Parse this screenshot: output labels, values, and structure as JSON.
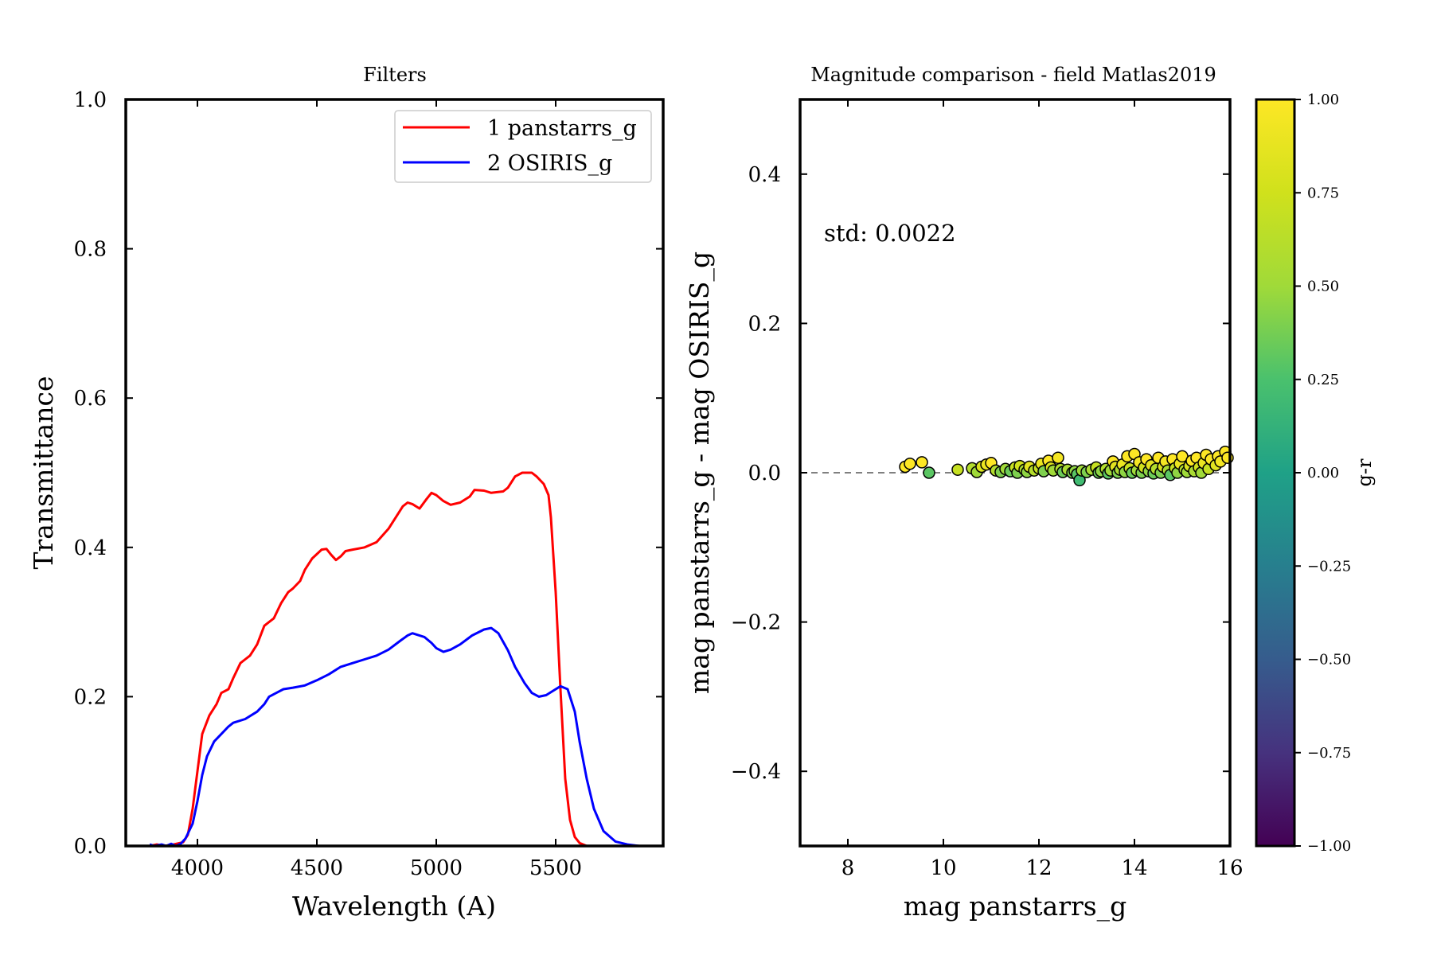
{
  "chart_data": [
    {
      "type": "line",
      "title": "Filters",
      "xlabel": "Wavelength (A)",
      "ylabel": "Transmittance",
      "xlim": [
        3700,
        5950
      ],
      "ylim": [
        0.0,
        1.0
      ],
      "xticks": [
        4000,
        4500,
        5000,
        5500
      ],
      "yticks": [
        0.0,
        0.2,
        0.4,
        0.6,
        0.8,
        1.0
      ],
      "xtick_labels": [
        "4000",
        "4500",
        "5000",
        "5500"
      ],
      "ytick_labels": [
        "0.0",
        "0.2",
        "0.4",
        "0.6",
        "0.8",
        "1.0"
      ],
      "legend_position": "top-right",
      "grid": false,
      "series": [
        {
          "name": "1 panstarrs_g",
          "color": "#ff0000",
          "points": [
            [
              3800,
              0.0
            ],
            [
              3830,
              0.002
            ],
            [
              3860,
              0.0
            ],
            [
              3900,
              0.002
            ],
            [
              3940,
              0.005
            ],
            [
              3960,
              0.015
            ],
            [
              3980,
              0.05
            ],
            [
              4000,
              0.1
            ],
            [
              4020,
              0.15
            ],
            [
              4050,
              0.175
            ],
            [
              4080,
              0.19
            ],
            [
              4100,
              0.205
            ],
            [
              4130,
              0.21
            ],
            [
              4150,
              0.225
            ],
            [
              4180,
              0.245
            ],
            [
              4200,
              0.25
            ],
            [
              4220,
              0.255
            ],
            [
              4250,
              0.27
            ],
            [
              4280,
              0.295
            ],
            [
              4300,
              0.3
            ],
            [
              4320,
              0.305
            ],
            [
              4350,
              0.325
            ],
            [
              4380,
              0.34
            ],
            [
              4400,
              0.345
            ],
            [
              4430,
              0.355
            ],
            [
              4450,
              0.37
            ],
            [
              4480,
              0.385
            ],
            [
              4520,
              0.397
            ],
            [
              4540,
              0.398
            ],
            [
              4560,
              0.39
            ],
            [
              4580,
              0.383
            ],
            [
              4600,
              0.388
            ],
            [
              4620,
              0.395
            ],
            [
              4650,
              0.397
            ],
            [
              4700,
              0.4
            ],
            [
              4750,
              0.407
            ],
            [
              4800,
              0.425
            ],
            [
              4830,
              0.44
            ],
            [
              4860,
              0.455
            ],
            [
              4880,
              0.46
            ],
            [
              4900,
              0.458
            ],
            [
              4930,
              0.452
            ],
            [
              4960,
              0.465
            ],
            [
              4980,
              0.473
            ],
            [
              5000,
              0.47
            ],
            [
              5030,
              0.462
            ],
            [
              5060,
              0.457
            ],
            [
              5100,
              0.46
            ],
            [
              5140,
              0.468
            ],
            [
              5160,
              0.477
            ],
            [
              5200,
              0.476
            ],
            [
              5230,
              0.473
            ],
            [
              5280,
              0.475
            ],
            [
              5300,
              0.48
            ],
            [
              5330,
              0.495
            ],
            [
              5360,
              0.5
            ],
            [
              5400,
              0.5
            ],
            [
              5420,
              0.495
            ],
            [
              5450,
              0.485
            ],
            [
              5470,
              0.47
            ],
            [
              5480,
              0.44
            ],
            [
              5500,
              0.34
            ],
            [
              5520,
              0.21
            ],
            [
              5540,
              0.09
            ],
            [
              5560,
              0.035
            ],
            [
              5580,
              0.012
            ],
            [
              5600,
              0.004
            ],
            [
              5630,
              0.0
            ]
          ]
        },
        {
          "name": "2 OSIRIS_g",
          "color": "#0000ff",
          "points": [
            [
              3800,
              0.002
            ],
            [
              3820,
              0.0
            ],
            [
              3850,
              0.002
            ],
            [
              3870,
              0.0
            ],
            [
              3890,
              0.003
            ],
            [
              3910,
              0.0
            ],
            [
              3930,
              0.003
            ],
            [
              3950,
              0.01
            ],
            [
              3980,
              0.03
            ],
            [
              4000,
              0.06
            ],
            [
              4020,
              0.095
            ],
            [
              4040,
              0.12
            ],
            [
              4070,
              0.14
            ],
            [
              4100,
              0.15
            ],
            [
              4130,
              0.16
            ],
            [
              4150,
              0.165
            ],
            [
              4200,
              0.17
            ],
            [
              4250,
              0.18
            ],
            [
              4280,
              0.19
            ],
            [
              4300,
              0.2
            ],
            [
              4330,
              0.205
            ],
            [
              4360,
              0.21
            ],
            [
              4400,
              0.212
            ],
            [
              4450,
              0.215
            ],
            [
              4500,
              0.222
            ],
            [
              4550,
              0.23
            ],
            [
              4600,
              0.24
            ],
            [
              4650,
              0.245
            ],
            [
              4700,
              0.25
            ],
            [
              4750,
              0.255
            ],
            [
              4800,
              0.263
            ],
            [
              4850,
              0.275
            ],
            [
              4880,
              0.282
            ],
            [
              4900,
              0.285
            ],
            [
              4950,
              0.28
            ],
            [
              4980,
              0.272
            ],
            [
              5000,
              0.265
            ],
            [
              5030,
              0.26
            ],
            [
              5060,
              0.263
            ],
            [
              5100,
              0.27
            ],
            [
              5150,
              0.282
            ],
            [
              5200,
              0.29
            ],
            [
              5230,
              0.292
            ],
            [
              5260,
              0.285
            ],
            [
              5300,
              0.262
            ],
            [
              5330,
              0.24
            ],
            [
              5370,
              0.218
            ],
            [
              5400,
              0.205
            ],
            [
              5430,
              0.2
            ],
            [
              5460,
              0.202
            ],
            [
              5490,
              0.208
            ],
            [
              5520,
              0.214
            ],
            [
              5550,
              0.21
            ],
            [
              5580,
              0.18
            ],
            [
              5600,
              0.14
            ],
            [
              5630,
              0.09
            ],
            [
              5660,
              0.05
            ],
            [
              5700,
              0.02
            ],
            [
              5750,
              0.006
            ],
            [
              5800,
              0.002
            ],
            [
              5850,
              0.0
            ]
          ]
        }
      ]
    },
    {
      "type": "scatter",
      "title": "Magnitude comparison - field Matlas2019",
      "xlabel": "mag panstarrs_g",
      "ylabel": "mag panstarrs_g - mag OSIRIS_g",
      "xlim": [
        7,
        16
      ],
      "ylim": [
        -0.5,
        0.5
      ],
      "xticks": [
        8,
        10,
        12,
        14,
        16
      ],
      "yticks": [
        -0.4,
        -0.2,
        0.0,
        0.2,
        0.4
      ],
      "xtick_labels": [
        "8",
        "10",
        "12",
        "14",
        "16"
      ],
      "ytick_labels": [
        "−0.4",
        "−0.2",
        "0.0",
        "0.2",
        "0.4"
      ],
      "annotation": {
        "text": "std: 0.0022",
        "x": 7.5,
        "y": 0.31,
        "color": "#0000ff"
      },
      "reference_line": {
        "y": 0.0,
        "style": "dashed",
        "color": "#808080"
      },
      "colorbar": {
        "label": "g-r",
        "range": [
          -1.0,
          1.0
        ],
        "ticks": [
          1.0,
          0.75,
          0.5,
          0.25,
          0.0,
          -0.25,
          -0.5,
          -0.75,
          -1.0
        ],
        "tick_labels": [
          "1.00",
          "0.75",
          "0.50",
          "0.25",
          "0.00",
          "−0.25",
          "−0.50",
          "−0.75",
          "−1.00"
        ],
        "colormap": "viridis"
      },
      "grid": false,
      "points": [
        [
          9.2,
          0.008,
          1.0
        ],
        [
          9.3,
          0.012,
          1.0
        ],
        [
          9.55,
          0.014,
          1.0
        ],
        [
          9.7,
          0.0,
          0.3
        ],
        [
          10.3,
          0.004,
          0.7
        ],
        [
          10.6,
          0.006,
          0.6
        ],
        [
          10.7,
          0.001,
          0.5
        ],
        [
          10.8,
          0.008,
          0.8
        ],
        [
          10.9,
          0.011,
          0.9
        ],
        [
          11.0,
          0.013,
          1.0
        ],
        [
          11.1,
          0.003,
          0.6
        ],
        [
          11.2,
          0.001,
          0.4
        ],
        [
          11.3,
          0.005,
          0.5
        ],
        [
          11.4,
          0.002,
          0.35
        ],
        [
          11.5,
          0.007,
          0.7
        ],
        [
          11.55,
          0.0,
          0.4
        ],
        [
          11.6,
          0.009,
          0.75
        ],
        [
          11.7,
          0.004,
          0.55
        ],
        [
          11.75,
          0.001,
          0.45
        ],
        [
          11.8,
          0.008,
          0.85
        ],
        [
          11.9,
          0.003,
          0.6
        ],
        [
          12.0,
          0.006,
          0.7
        ],
        [
          12.05,
          0.012,
          0.9
        ],
        [
          12.1,
          0.002,
          0.4
        ],
        [
          12.2,
          0.016,
          1.0
        ],
        [
          12.25,
          0.007,
          0.8
        ],
        [
          12.3,
          0.003,
          0.5
        ],
        [
          12.4,
          0.02,
          0.95
        ],
        [
          12.45,
          0.005,
          0.6
        ],
        [
          12.5,
          0.001,
          0.35
        ],
        [
          12.6,
          0.004,
          0.55
        ],
        [
          12.7,
          0.0,
          0.4
        ],
        [
          12.75,
          0.002,
          0.45
        ],
        [
          12.8,
          -0.002,
          0.3
        ],
        [
          12.85,
          -0.01,
          0.2
        ],
        [
          12.9,
          0.003,
          0.5
        ],
        [
          13.0,
          0.001,
          0.4
        ],
        [
          13.1,
          0.004,
          0.55
        ],
        [
          13.2,
          0.007,
          0.7
        ],
        [
          13.25,
          0.0,
          0.35
        ],
        [
          13.3,
          0.002,
          0.45
        ],
        [
          13.4,
          0.005,
          0.6
        ],
        [
          13.45,
          -0.001,
          0.3
        ],
        [
          13.5,
          0.003,
          0.5
        ],
        [
          13.55,
          0.015,
          1.0
        ],
        [
          13.6,
          0.008,
          0.85
        ],
        [
          13.65,
          0.0,
          0.4
        ],
        [
          13.7,
          0.004,
          0.55
        ],
        [
          13.75,
          0.011,
          0.9
        ],
        [
          13.8,
          0.001,
          0.45
        ],
        [
          13.85,
          0.022,
          1.0
        ],
        [
          13.9,
          0.006,
          0.7
        ],
        [
          13.95,
          0.0,
          0.35
        ],
        [
          14.0,
          0.025,
          1.0
        ],
        [
          14.05,
          0.003,
          0.5
        ],
        [
          14.1,
          0.014,
          0.95
        ],
        [
          14.15,
          0.0,
          0.4
        ],
        [
          14.2,
          0.007,
          0.75
        ],
        [
          14.25,
          0.018,
          1.0
        ],
        [
          14.3,
          0.002,
          0.45
        ],
        [
          14.35,
          0.01,
          0.85
        ],
        [
          14.4,
          -0.001,
          0.35
        ],
        [
          14.45,
          0.005,
          0.6
        ],
        [
          14.5,
          0.02,
          1.0
        ],
        [
          14.55,
          0.0,
          0.4
        ],
        [
          14.6,
          0.008,
          0.8
        ],
        [
          14.65,
          0.015,
          0.95
        ],
        [
          14.7,
          0.003,
          0.55
        ],
        [
          14.75,
          -0.003,
          0.3
        ],
        [
          14.8,
          0.018,
          1.0
        ],
        [
          14.85,
          0.006,
          0.7
        ],
        [
          14.9,
          0.0,
          0.45
        ],
        [
          14.95,
          0.012,
          0.9
        ],
        [
          15.0,
          0.022,
          1.0
        ],
        [
          15.05,
          0.004,
          0.6
        ],
        [
          15.1,
          0.001,
          0.5
        ],
        [
          15.15,
          0.009,
          0.8
        ],
        [
          15.2,
          0.016,
          1.0
        ],
        [
          15.25,
          0.002,
          0.55
        ],
        [
          15.3,
          0.02,
          1.0
        ],
        [
          15.35,
          0.007,
          0.75
        ],
        [
          15.4,
          0.0,
          0.5
        ],
        [
          15.45,
          0.013,
          0.9
        ],
        [
          15.5,
          0.024,
          1.0
        ],
        [
          15.55,
          0.005,
          0.7
        ],
        [
          15.6,
          0.018,
          1.0
        ],
        [
          15.7,
          0.01,
          0.85
        ],
        [
          15.75,
          0.022,
          1.0
        ],
        [
          15.8,
          0.015,
          0.95
        ],
        [
          15.9,
          0.028,
          1.0
        ],
        [
          15.95,
          0.02,
          1.0
        ]
      ]
    }
  ]
}
